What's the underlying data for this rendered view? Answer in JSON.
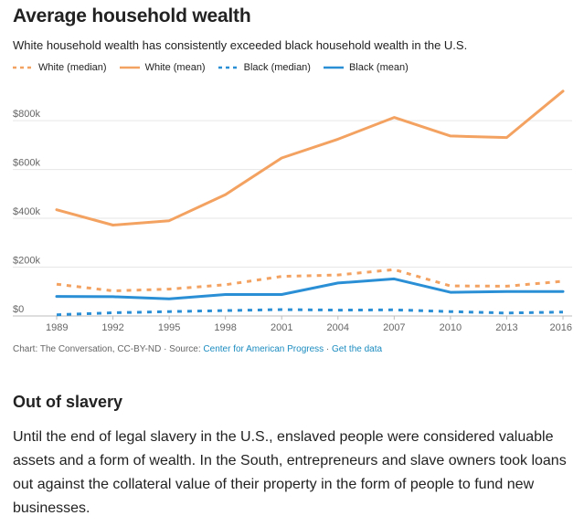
{
  "chart_data": {
    "type": "line",
    "title": "Average household wealth",
    "subtitle": "White household wealth has consistently exceeded black household wealth in the U.S.",
    "x": [
      1989,
      1992,
      1995,
      1998,
      2001,
      2004,
      2007,
      2010,
      2013,
      2016
    ],
    "x_tick_labels": [
      "1989",
      "1992",
      "1995",
      "1998",
      "2001",
      "2004",
      "2007",
      "2010",
      "2013",
      "2016"
    ],
    "y_tick_labels": [
      "$0",
      "$200k",
      "$400k",
      "$600k",
      "$800k"
    ],
    "y_ticks": [
      0,
      200000,
      400000,
      600000,
      800000
    ],
    "ylim": [
      0,
      950000
    ],
    "grid": true,
    "legend_position": "top",
    "series": [
      {
        "name": "White (median)",
        "color": "#f4a261",
        "dashed": true,
        "values": [
          130000,
          103000,
          110000,
          128000,
          162000,
          168000,
          190000,
          123000,
          122000,
          142000
        ]
      },
      {
        "name": "White (mean)",
        "color": "#f4a261",
        "dashed": false,
        "values": [
          435000,
          372000,
          390000,
          497000,
          647000,
          724000,
          813000,
          737000,
          731000,
          921000
        ]
      },
      {
        "name": "Black (median)",
        "color": "#2b8fd6",
        "dashed": true,
        "values": [
          5000,
          13000,
          18000,
          22000,
          26000,
          24000,
          25000,
          18000,
          12000,
          16000
        ]
      },
      {
        "name": "Black (mean)",
        "color": "#2b8fd6",
        "dashed": false,
        "values": [
          80000,
          79000,
          70000,
          88000,
          88000,
          135000,
          152000,
          97000,
          100000,
          100000
        ]
      }
    ]
  },
  "source": {
    "prefix": "Chart: The Conversation, CC-BY-ND · Source: ",
    "source_link": "Center for American Progress",
    "separator": " · ",
    "data_link": "Get the data"
  },
  "article": {
    "heading": "Out of slavery",
    "paragraph": "Until the end of legal slavery in the U.S., enslaved people were considered valuable assets and a form of wealth. In the South, entrepreneurs and slave owners took loans out against the collateral value of their property in the form of people to fund new businesses."
  }
}
